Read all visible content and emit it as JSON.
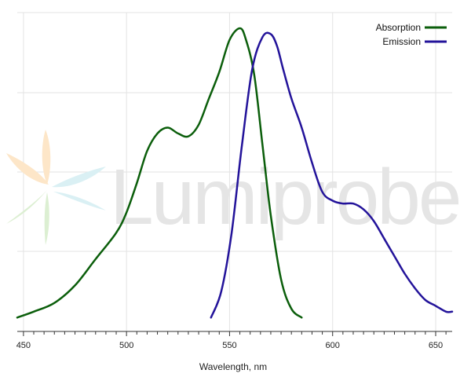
{
  "watermark": {
    "text": "Lumiprobe",
    "petal_colors": [
      "#fde6c8",
      "#dcefd2",
      "#daf0f4"
    ]
  },
  "chart_data": {
    "type": "line",
    "title": "",
    "xlabel": "Wavelength, nm",
    "ylabel": "",
    "xlim": [
      447,
      658
    ],
    "ylim": [
      0,
      1
    ],
    "xticks": [
      450,
      500,
      550,
      600,
      650
    ],
    "grid": true,
    "legend": "top-right",
    "series": [
      {
        "name": "Absorption",
        "color": "#0b5e0b",
        "x": [
          447,
          455,
          465,
          475,
          485,
          495,
          500,
          505,
          510,
          515,
          520,
          525,
          530,
          535,
          540,
          545,
          550,
          555,
          558,
          562,
          566,
          570,
          575,
          580,
          585
        ],
        "y": [
          0.01,
          0.03,
          0.06,
          0.12,
          0.21,
          0.3,
          0.37,
          0.47,
          0.58,
          0.64,
          0.66,
          0.64,
          0.63,
          0.67,
          0.76,
          0.85,
          0.96,
          1.0,
          0.96,
          0.84,
          0.6,
          0.36,
          0.14,
          0.04,
          0.01
        ]
      },
      {
        "name": "Emission",
        "color": "#23139a",
        "x": [
          541,
          546,
          551,
          556,
          561,
          566,
          570,
          573,
          576,
          580,
          585,
          590,
          595,
          600,
          605,
          610,
          615,
          620,
          625,
          630,
          635,
          640,
          645,
          650,
          655,
          658
        ],
        "y": [
          0.01,
          0.1,
          0.3,
          0.6,
          0.86,
          0.97,
          0.98,
          0.94,
          0.86,
          0.76,
          0.66,
          0.54,
          0.44,
          0.41,
          0.4,
          0.4,
          0.38,
          0.34,
          0.28,
          0.22,
          0.16,
          0.11,
          0.07,
          0.05,
          0.03,
          0.03
        ]
      }
    ]
  }
}
